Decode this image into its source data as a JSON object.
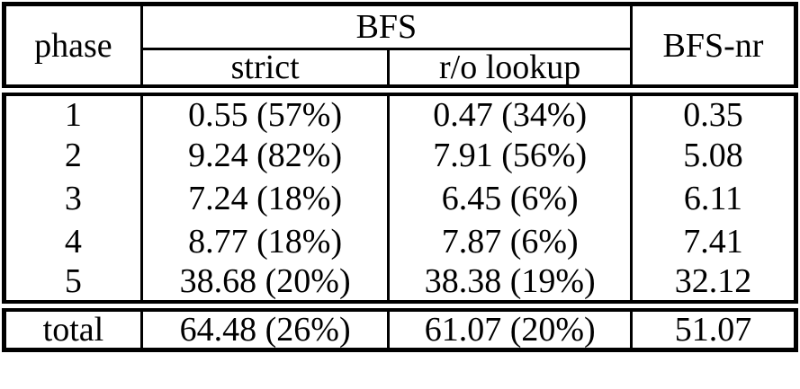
{
  "table": {
    "header": {
      "phase_label": "phase",
      "group_label": "BFS",
      "strict_label": "strict",
      "ro_lookup_label": "r/o lookup",
      "bfs_nr_label": "BFS-nr"
    },
    "rows": [
      {
        "phase": "1",
        "strict": "0.55 (57%)",
        "ro_lookup": "0.47 (34%)",
        "bfs_nr": "0.35"
      },
      {
        "phase": "2",
        "strict": "9.24 (82%)",
        "ro_lookup": "7.91 (56%)",
        "bfs_nr": "5.08"
      },
      {
        "phase": "3",
        "strict": "7.24 (18%)",
        "ro_lookup": "6.45 (6%)",
        "bfs_nr": "6.11"
      },
      {
        "phase": "4",
        "strict": "8.77 (18%)",
        "ro_lookup": "7.87 (6%)",
        "bfs_nr": "7.41"
      },
      {
        "phase": "5",
        "strict": "38.68 (20%)",
        "ro_lookup": "38.38 (19%)",
        "bfs_nr": "32.12"
      }
    ],
    "total": {
      "phase": "total",
      "strict": "64.48 (26%)",
      "ro_lookup": "61.07 (20%)",
      "bfs_nr": "51.07"
    }
  },
  "colors": {
    "border": "#000000",
    "background": "#ffffff",
    "text": "#000000"
  }
}
